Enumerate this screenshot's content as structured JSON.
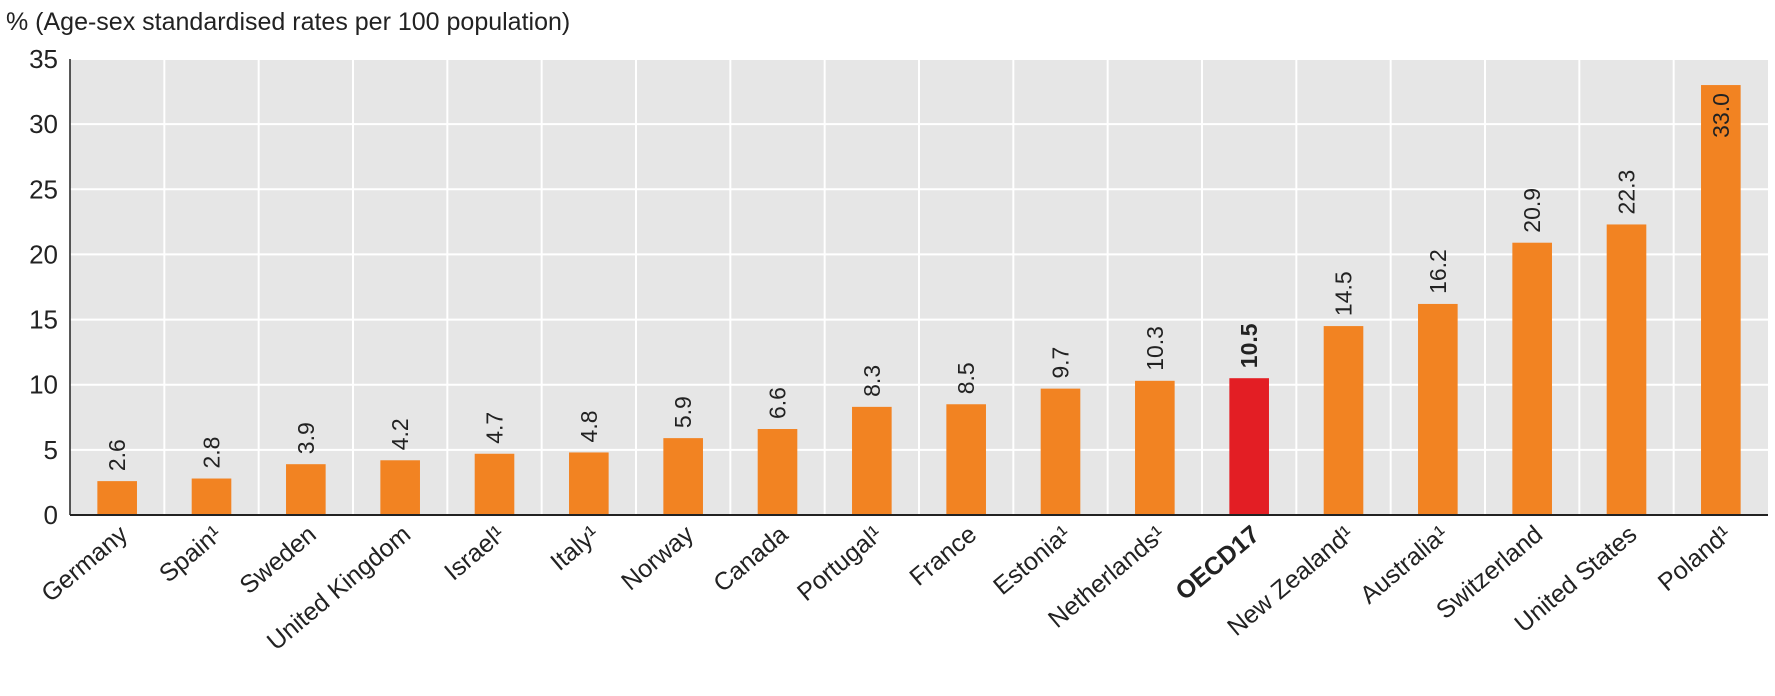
{
  "chart_data": {
    "type": "bar",
    "y_axis_label": "% (Age-sex standardised rates per 100 population)",
    "categories": [
      "Germany",
      "Spain¹",
      "Sweden",
      "United Kingdom",
      "Israel¹",
      "Italy¹",
      "Norway",
      "Canada",
      "Portugal¹",
      "France",
      "Estonia¹",
      "Netherlands¹",
      "OECD17",
      "New Zealand¹",
      "Australia¹",
      "Switzerland",
      "United States",
      "Poland¹"
    ],
    "values": [
      2.6,
      2.8,
      3.9,
      4.2,
      4.7,
      4.8,
      5.9,
      6.6,
      8.3,
      8.5,
      9.7,
      10.3,
      10.5,
      14.5,
      16.2,
      20.9,
      22.3,
      33.0
    ],
    "value_labels": [
      "2.6",
      "2.8",
      "3.9",
      "4.2",
      "4.7",
      "4.8",
      "5.9",
      "6.6",
      "8.3",
      "8.5",
      "9.7",
      "10.3",
      "10.5",
      "14.5",
      "16.2",
      "20.9",
      "22.3",
      "33.0"
    ],
    "colors": [
      "#f28322",
      "#f28322",
      "#f28322",
      "#f28322",
      "#f28322",
      "#f28322",
      "#f28322",
      "#f28322",
      "#f28322",
      "#f28322",
      "#f28322",
      "#f28322",
      "#e31e24",
      "#f28322",
      "#f28322",
      "#f28322",
      "#f28322",
      "#f28322"
    ],
    "ylim": [
      0,
      35
    ],
    "yticks": [
      0,
      5,
      10,
      15,
      20,
      25,
      30,
      35
    ],
    "grid": true
  }
}
